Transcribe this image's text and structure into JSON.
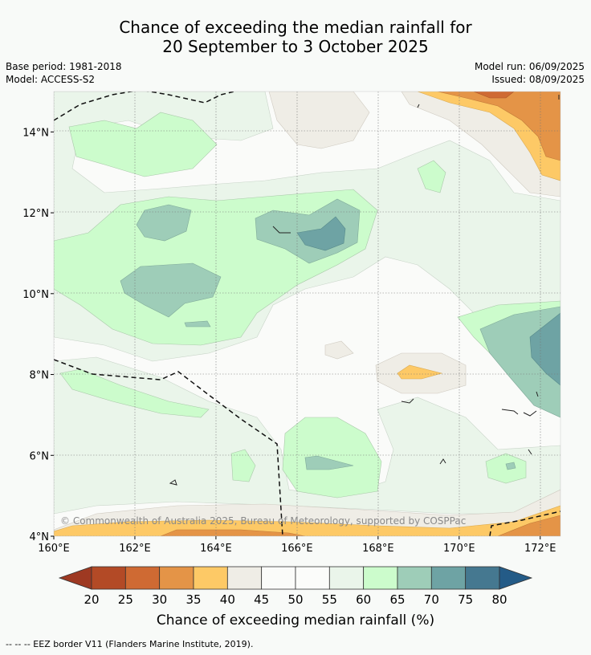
{
  "title": {
    "line1": "Chance of exceeding the median rainfall for",
    "line2": "20 September to 3 October 2025"
  },
  "meta": {
    "base_period": "Base period: 1981-2018",
    "model": "Model: ACCESS-S2",
    "model_run": "Model run: 06/09/2025",
    "issued": "Issued: 08/09/2025"
  },
  "map": {
    "lat_range": [
      4,
      15
    ],
    "lon_range": [
      160,
      172.5
    ],
    "lat_ticks": [
      {
        "value": 4,
        "label": "4°N"
      },
      {
        "value": 6,
        "label": "6°N"
      },
      {
        "value": 8,
        "label": "8°N"
      },
      {
        "value": 10,
        "label": "10°N"
      },
      {
        "value": 12,
        "label": "12°N"
      },
      {
        "value": 14,
        "label": "14°N"
      }
    ],
    "lon_ticks": [
      {
        "value": 160,
        "label": "160°E"
      },
      {
        "value": 162,
        "label": "162°E"
      },
      {
        "value": 164,
        "label": "164°E"
      },
      {
        "value": 166,
        "label": "166°E"
      },
      {
        "value": 168,
        "label": "168°E"
      },
      {
        "value": 170,
        "label": "170°E"
      },
      {
        "value": 172,
        "label": "172°E"
      }
    ],
    "copyright": "© Commonwealth of Australia 2025, Bureau of Meteorology, supported by COSPPac"
  },
  "colorbar": {
    "title": "Chance of exceeding median rainfall (%)",
    "ticks": [
      "20",
      "25",
      "30",
      "35",
      "40",
      "45",
      "50",
      "55",
      "60",
      "65",
      "70",
      "75",
      "80"
    ],
    "colors": [
      "#b34a26",
      "#cf6a33",
      "#e49447",
      "#fdc966",
      "#efede6",
      "#fafbf9",
      "#fbfcfa",
      "#eaf5ea",
      "#ccfccc",
      "#9ecdb8",
      "#6ea3a4",
      "#457890"
    ],
    "under_color": "#9e3922",
    "over_color": "#245b87"
  },
  "footnote": "--  --  -- EEZ border V11 (Flanders Marine Institute, 2019)."
}
